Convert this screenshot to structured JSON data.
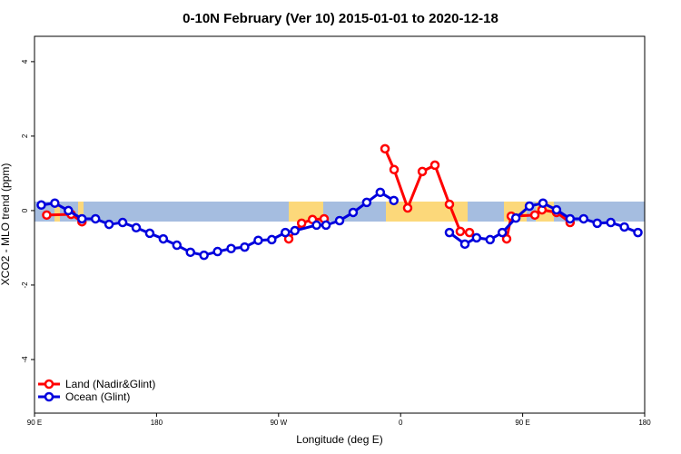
{
  "chart_data": {
    "type": "line",
    "title": "0-10N February (Ver 10)   2015-01-01 to 2020-12-18",
    "x_label": "Longitude (deg E)",
    "y_label": "XCO2 - MLO trend (ppm)",
    "xlim": [
      90,
      540
    ],
    "xticks": [
      {
        "value": 90,
        "label": "90 E"
      },
      180,
      {
        "value": 270,
        "label": "90 W"
      },
      {
        "value": 360,
        "label": "0"
      },
      {
        "value": 450,
        "label": "90 E"
      },
      {
        "value": 540,
        "label": "180"
      }
    ],
    "ylim": [
      -5.44,
      4.68
    ],
    "yticks": [
      -4,
      -2,
      0,
      2,
      4
    ],
    "legend": "bottom-left",
    "series": [
      {
        "name": "Land (Nadir&Glint)",
        "color": "#ff0000",
        "x": [
          99,
          117,
          125,
          200,
          277.5,
          287,
          295,
          303.6,
          330,
          348.5,
          355.2,
          365.2,
          376,
          385.3,
          396,
          404,
          410.8,
          425,
          438.2,
          441.6,
          459,
          464.3,
          475,
          485
        ],
        "values": [
          -0.12,
          -0.1,
          -0.3,
          null,
          -0.76,
          -0.34,
          -0.24,
          -0.22,
          null,
          1.66,
          1.1,
          0.07,
          1.05,
          1.22,
          0.17,
          -0.56,
          -0.59,
          null,
          -0.76,
          -0.15,
          -0.12,
          0.02,
          -0.05,
          -0.32
        ]
      },
      {
        "name": "Ocean (Glint)",
        "color": "#0000dd",
        "x": [
          95,
          105,
          115,
          125,
          135,
          145,
          155,
          165,
          175,
          185,
          195,
          205,
          215,
          225,
          235,
          245,
          255,
          265,
          275,
          282,
          298,
          305,
          315,
          325,
          335,
          345,
          355,
          375,
          396,
          407.4,
          416,
          426,
          435,
          445,
          455,
          465,
          475,
          485,
          495,
          505,
          515,
          525,
          535
        ],
        "values": [
          0.15,
          0.2,
          0,
          -0.22,
          -0.22,
          -0.37,
          -0.32,
          -0.46,
          -0.61,
          -0.76,
          -0.93,
          -1.12,
          -1.2,
          -1.1,
          -1.02,
          -0.98,
          -0.8,
          -0.78,
          -0.59,
          -0.54,
          -0.39,
          -0.39,
          -0.27,
          -0.05,
          0.22,
          0.49,
          0.27,
          null,
          -0.59,
          -0.9,
          -0.73,
          -0.78,
          -0.59,
          -0.2,
          0.12,
          0.2,
          0.02,
          -0.22,
          -0.22,
          -0.34,
          -0.32,
          -0.44,
          -0.59
        ]
      }
    ]
  }
}
